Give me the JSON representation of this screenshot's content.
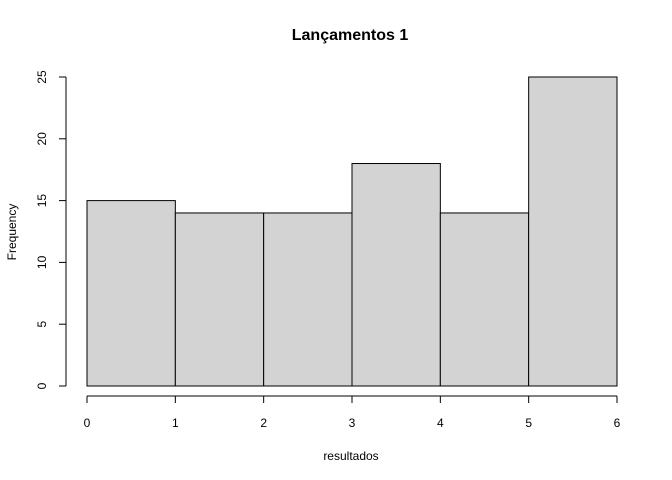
{
  "chart_data": {
    "type": "bar",
    "title": "Lançamentos 1",
    "xlabel": "resultados",
    "ylabel": "Frequency",
    "bins": [
      [
        0,
        1
      ],
      [
        1,
        2
      ],
      [
        2,
        3
      ],
      [
        3,
        4
      ],
      [
        4,
        5
      ],
      [
        5,
        6
      ]
    ],
    "values": [
      15,
      14,
      14,
      18,
      14,
      25
    ],
    "xlim": [
      0,
      6
    ],
    "ylim": [
      0,
      25
    ],
    "x_ticks": [
      0,
      1,
      2,
      3,
      4,
      5,
      6
    ],
    "y_ticks": [
      0,
      5,
      10,
      15,
      20,
      25
    ],
    "grid": false,
    "bar_color": "#d3d3d3",
    "edge_color": "#000000"
  }
}
